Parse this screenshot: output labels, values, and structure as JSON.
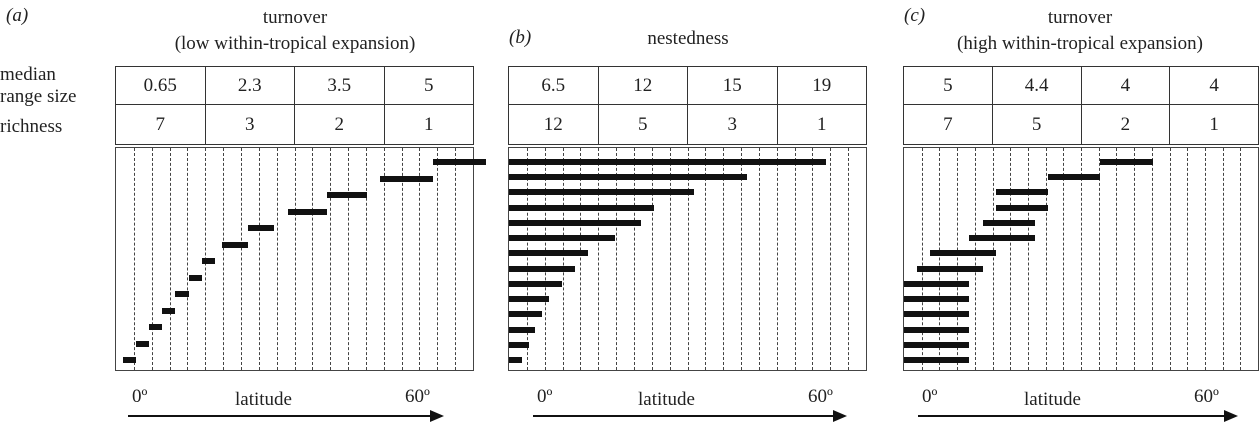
{
  "row_labels": {
    "median": "median",
    "range_size": "range size",
    "richness": "richness"
  },
  "axis": {
    "x0": "0º",
    "x60": "60º",
    "label": "latitude"
  },
  "panels": [
    {
      "id": "a",
      "letter": "(a)",
      "title_line1": "turnover",
      "title_line2": "(low within-tropical expansion)",
      "median_range_size": [
        "0.65",
        "2.3",
        "3.5",
        "5"
      ],
      "richness": [
        "7",
        "3",
        "2",
        "1"
      ],
      "ranges": [
        [
          0.5,
          1.5
        ],
        [
          1.5,
          2.5
        ],
        [
          2.5,
          3.5
        ],
        [
          3.5,
          4.5
        ],
        [
          4.5,
          5.5
        ],
        [
          5.5,
          6.5
        ],
        [
          6.5,
          7.5
        ],
        [
          8,
          10
        ],
        [
          10,
          12
        ],
        [
          13,
          16
        ],
        [
          16,
          19
        ],
        [
          20,
          24
        ],
        [
          24,
          28
        ]
      ]
    },
    {
      "id": "b",
      "letter": "(b)",
      "title_line1": "nestedness",
      "title_line2": "",
      "median_range_size": [
        "6.5",
        "12",
        "15",
        "19"
      ],
      "richness": [
        "12",
        "5",
        "3",
        "1"
      ],
      "ranges": [
        [
          0,
          1
        ],
        [
          0,
          1.5
        ],
        [
          0,
          2
        ],
        [
          0,
          2.5
        ],
        [
          0,
          3
        ],
        [
          0,
          4
        ],
        [
          0,
          5
        ],
        [
          0,
          6
        ],
        [
          0,
          8
        ],
        [
          0,
          10
        ],
        [
          0,
          11
        ],
        [
          0,
          14
        ],
        [
          0,
          18
        ],
        [
          0,
          24
        ]
      ]
    },
    {
      "id": "c",
      "letter": "(c)",
      "title_line1": "turnover",
      "title_line2": "(high within-tropical expansion)",
      "median_range_size": [
        "5",
        "4.4",
        "4",
        "4"
      ],
      "richness": [
        "7",
        "5",
        "2",
        "1"
      ],
      "ranges": [
        [
          0,
          5
        ],
        [
          0,
          5
        ],
        [
          0,
          5
        ],
        [
          0,
          5
        ],
        [
          0,
          5
        ],
        [
          0,
          5
        ],
        [
          1,
          6
        ],
        [
          2,
          7
        ],
        [
          5,
          10
        ],
        [
          6,
          10
        ],
        [
          7,
          11
        ],
        [
          7,
          11
        ],
        [
          11,
          15
        ],
        [
          15,
          19
        ]
      ]
    }
  ]
}
